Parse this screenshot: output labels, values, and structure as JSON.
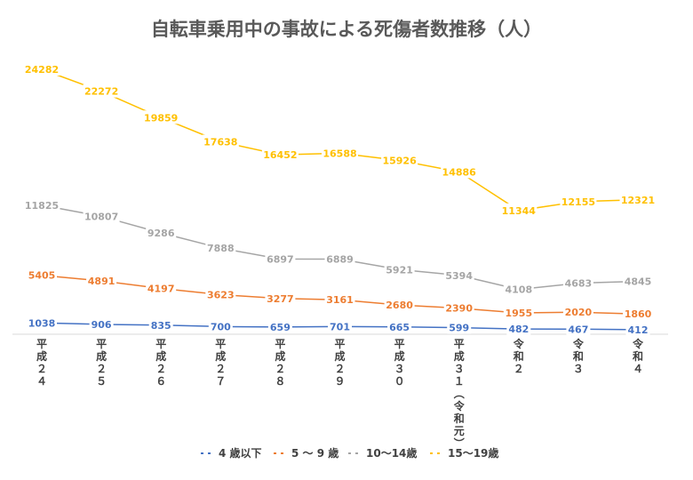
{
  "chart_data": {
    "type": "line",
    "title": "自転車乗用中の事故による死傷者数推移（人）",
    "categories": [
      "平成２４",
      "平成２５",
      "平成２６",
      "平成２７",
      "平成２８",
      "平成２９",
      "平成３０",
      "平成３１（令和元）",
      "令和２",
      "令和３",
      "令和４"
    ],
    "series": [
      {
        "name": "4 歳以下",
        "color": "#4472C4",
        "values": [
          1038,
          906,
          835,
          700,
          659,
          701,
          665,
          599,
          482,
          467,
          412
        ]
      },
      {
        "name": "5 ～ 9 歳",
        "color": "#ED7D31",
        "values": [
          5405,
          4891,
          4197,
          3623,
          3277,
          3161,
          2680,
          2390,
          1955,
          2020,
          1860
        ]
      },
      {
        "name": "10～14歳",
        "color": "#A5A5A5",
        "values": [
          11825,
          10807,
          9286,
          7888,
          6897,
          6889,
          5921,
          5394,
          4108,
          4683,
          4845
        ]
      },
      {
        "name": "15～19歳",
        "color": "#FFC000",
        "values": [
          24282,
          22272,
          19859,
          17638,
          16452,
          16588,
          15926,
          14886,
          11344,
          12155,
          12321
        ]
      }
    ],
    "legend_position": "bottom",
    "grid": false
  }
}
